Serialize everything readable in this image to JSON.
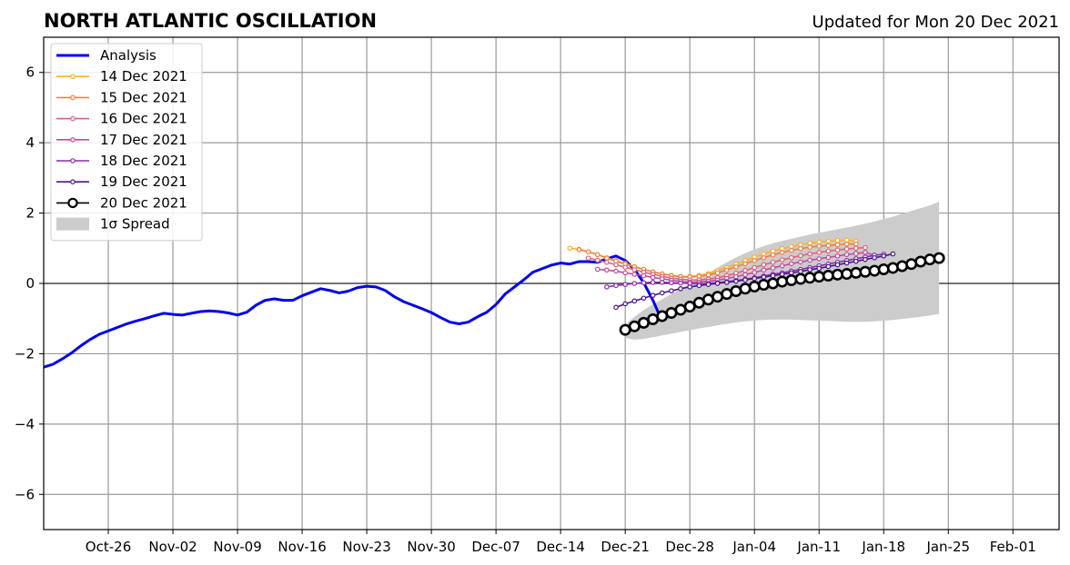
{
  "chart_data": {
    "type": "line",
    "title": "NORTH ATLANTIC OSCILLATION",
    "subtitle": "Updated for Mon 20 Dec 2021",
    "xlabel": "",
    "ylabel": "",
    "xlim": [
      "2021-10-19",
      "2022-02-06"
    ],
    "ylim": [
      -7,
      7
    ],
    "yticks": [
      -6,
      -4,
      -2,
      0,
      2,
      4,
      6
    ],
    "ytick_labels": [
      "−6",
      "−4",
      "−2",
      "0",
      "2",
      "4",
      "6"
    ],
    "xticks": [
      "2021-10-26",
      "2021-11-02",
      "2021-11-09",
      "2021-11-16",
      "2021-11-23",
      "2021-11-30",
      "2021-12-07",
      "2021-12-14",
      "2021-12-21",
      "2021-12-28",
      "2022-01-04",
      "2022-01-11",
      "2022-01-18",
      "2022-01-25",
      "2022-02-01"
    ],
    "xtick_labels": [
      "Oct-26",
      "Nov-02",
      "Nov-09",
      "Nov-16",
      "Nov-23",
      "Nov-30",
      "Dec-07",
      "Dec-14",
      "Dec-21",
      "Dec-28",
      "Jan-04",
      "Jan-11",
      "Jan-18",
      "Jan-25",
      "Feb-01"
    ],
    "grid": true,
    "legend_position": "top-left",
    "analysis": {
      "name": "Analysis",
      "color": "#0000ee",
      "start": "2021-10-19",
      "values": [
        -2.38,
        -2.3,
        -2.15,
        -1.98,
        -1.78,
        -1.6,
        -1.45,
        -1.35,
        -1.25,
        -1.15,
        -1.07,
        -1.0,
        -0.92,
        -0.85,
        -0.88,
        -0.9,
        -0.85,
        -0.8,
        -0.78,
        -0.8,
        -0.84,
        -0.9,
        -0.82,
        -0.62,
        -0.48,
        -0.44,
        -0.48,
        -0.48,
        -0.35,
        -0.25,
        -0.15,
        -0.2,
        -0.27,
        -0.22,
        -0.12,
        -0.08,
        -0.1,
        -0.2,
        -0.38,
        -0.52,
        -0.62,
        -0.72,
        -0.83,
        -0.97,
        -1.1,
        -1.15,
        -1.1,
        -0.95,
        -0.82,
        -0.6,
        -0.3,
        -0.1,
        0.1,
        0.32,
        0.42,
        0.52,
        0.58,
        0.55,
        0.62,
        0.62,
        0.6,
        0.7,
        0.78,
        0.65,
        0.4,
        0.02,
        -0.48,
        -1.08
      ]
    },
    "forecasts": [
      {
        "name": "14 Dec 2021",
        "color": "#f9b034",
        "start": "2021-12-15",
        "values": [
          1.0,
          0.97,
          0.9,
          0.82,
          0.73,
          0.65,
          0.57,
          0.48,
          0.4,
          0.33,
          0.27,
          0.23,
          0.2,
          0.2,
          0.23,
          0.28,
          0.36,
          0.45,
          0.55,
          0.65,
          0.75,
          0.84,
          0.92,
          0.99,
          1.05,
          1.1,
          1.15,
          1.18,
          1.2,
          1.22,
          1.23,
          1.2
        ]
      },
      {
        "name": "15 Dec 2021",
        "color": "#f08040",
        "start": "2021-12-16",
        "values": [
          0.96,
          0.9,
          0.82,
          0.72,
          0.63,
          0.55,
          0.47,
          0.4,
          0.33,
          0.27,
          0.22,
          0.19,
          0.18,
          0.2,
          0.24,
          0.3,
          0.38,
          0.47,
          0.56,
          0.65,
          0.73,
          0.81,
          0.88,
          0.94,
          0.99,
          1.03,
          1.06,
          1.08,
          1.1,
          1.12,
          1.12
        ]
      },
      {
        "name": "16 Dec 2021",
        "color": "#e0607a",
        "start": "2021-12-17",
        "values": [
          0.72,
          0.66,
          0.6,
          0.53,
          0.46,
          0.39,
          0.32,
          0.26,
          0.2,
          0.15,
          0.12,
          0.1,
          0.1,
          0.12,
          0.16,
          0.22,
          0.29,
          0.37,
          0.45,
          0.53,
          0.6,
          0.67,
          0.73,
          0.79,
          0.84,
          0.88,
          0.92,
          0.95,
          0.98,
          1.0,
          1.02
        ]
      },
      {
        "name": "17 Dec 2021",
        "color": "#c24a9c",
        "start": "2021-12-18",
        "values": [
          0.4,
          0.38,
          0.35,
          0.3,
          0.26,
          0.22,
          0.17,
          0.13,
          0.09,
          0.06,
          0.04,
          0.04,
          0.06,
          0.09,
          0.14,
          0.19,
          0.25,
          0.31,
          0.38,
          0.44,
          0.5,
          0.56,
          0.61,
          0.66,
          0.7,
          0.74,
          0.78,
          0.82,
          0.85,
          0.88,
          0.8
        ]
      },
      {
        "name": "18 Dec 2021",
        "color": "#8a2aad",
        "start": "2021-12-19",
        "values": [
          -0.1,
          -0.06,
          -0.03,
          0.0,
          0.02,
          0.03,
          0.03,
          0.02,
          0.01,
          0.0,
          -0.01,
          0.0,
          0.02,
          0.05,
          0.08,
          0.12,
          0.16,
          0.21,
          0.26,
          0.3,
          0.35,
          0.4,
          0.45,
          0.5,
          0.55,
          0.6,
          0.65,
          0.7,
          0.75,
          0.8,
          0.83
        ]
      },
      {
        "name": "19 Dec 2021",
        "color": "#4a148c",
        "start": "2021-12-20",
        "values": [
          -0.68,
          -0.58,
          -0.5,
          -0.42,
          -0.34,
          -0.27,
          -0.21,
          -0.15,
          -0.1,
          -0.06,
          -0.03,
          0.0,
          0.03,
          0.06,
          0.1,
          0.14,
          0.18,
          0.22,
          0.26,
          0.3,
          0.34,
          0.39,
          0.43,
          0.48,
          0.53,
          0.58,
          0.63,
          0.68,
          0.73,
          0.78,
          0.84
        ]
      }
    ],
    "current": {
      "name": "20 Dec 2021",
      "color": "#000000",
      "start": "2021-12-21",
      "values": [
        -1.32,
        -1.22,
        -1.12,
        -1.02,
        -0.93,
        -0.84,
        -0.75,
        -0.66,
        -0.55,
        -0.46,
        -0.38,
        -0.3,
        -0.22,
        -0.15,
        -0.09,
        -0.04,
        0.0,
        0.05,
        0.09,
        0.13,
        0.16,
        0.19,
        0.22,
        0.25,
        0.27,
        0.3,
        0.33,
        0.36,
        0.4,
        0.44,
        0.49,
        0.55,
        0.62,
        0.68,
        0.72
      ]
    },
    "spread": {
      "name": "1σ Spread",
      "color": "#cccccc",
      "start": "2021-12-21",
      "upper": [
        -1.18,
        -0.95,
        -0.76,
        -0.6,
        -0.45,
        -0.3,
        -0.15,
        0.0,
        0.15,
        0.3,
        0.45,
        0.6,
        0.74,
        0.86,
        0.97,
        1.06,
        1.14,
        1.21,
        1.27,
        1.33,
        1.39,
        1.44,
        1.49,
        1.54,
        1.59,
        1.64,
        1.7,
        1.76,
        1.83,
        1.9,
        1.98,
        2.06,
        2.14,
        2.22,
        2.32
      ],
      "lower": [
        -1.55,
        -1.6,
        -1.58,
        -1.53,
        -1.48,
        -1.43,
        -1.38,
        -1.33,
        -1.28,
        -1.24,
        -1.19,
        -1.15,
        -1.11,
        -1.08,
        -1.06,
        -1.04,
        -1.03,
        -1.03,
        -1.03,
        -1.04,
        -1.05,
        -1.06,
        -1.07,
        -1.08,
        -1.09,
        -1.09,
        -1.09,
        -1.08,
        -1.06,
        -1.04,
        -1.01,
        -0.98,
        -0.95,
        -0.91,
        -0.87
      ]
    }
  }
}
